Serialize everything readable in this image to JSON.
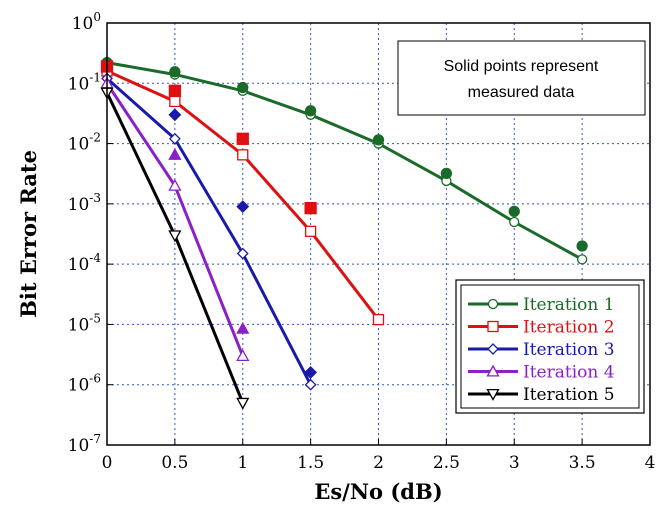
{
  "chart_data": {
    "type": "line",
    "xlabel": "Es/No (dB)",
    "ylabel": "Bit Error Rate",
    "xlim": [
      0,
      4
    ],
    "ylim": [
      1e-07,
      1
    ],
    "yscale": "log",
    "grid": true,
    "x_ticks": [
      "0",
      "0.5",
      "1",
      "1.5",
      "2",
      "2.5",
      "3",
      "3.5",
      "4"
    ],
    "y_ticks": [
      {
        "base": "10",
        "exp": "0"
      },
      {
        "base": "10",
        "exp": "-1"
      },
      {
        "base": "10",
        "exp": "-2"
      },
      {
        "base": "10",
        "exp": "-3"
      },
      {
        "base": "10",
        "exp": "-4"
      },
      {
        "base": "10",
        "exp": "-5"
      },
      {
        "base": "10",
        "exp": "-6"
      },
      {
        "base": "10",
        "exp": "-7"
      }
    ],
    "annotation": [
      "Solid points represent",
      "measured data"
    ],
    "legend_position": "lower-right",
    "series": [
      {
        "name": "Iteration 1",
        "color": "#1a6b2a",
        "marker": "circle",
        "x": [
          0,
          0.5,
          1,
          1.5,
          2,
          2.5,
          3,
          3.5
        ],
        "simulated": [
          0.22,
          0.14,
          0.075,
          0.03,
          0.01,
          0.0024,
          0.0005,
          0.00012
        ],
        "measured": [
          0.22,
          0.155,
          0.085,
          0.035,
          0.0115,
          0.0032,
          0.00075,
          0.0002
        ]
      },
      {
        "name": "Iteration 2",
        "color": "#dd1111",
        "marker": "square",
        "x": [
          0,
          0.5,
          1,
          1.5,
          2
        ],
        "simulated": [
          0.16,
          0.05,
          0.0065,
          0.00035,
          1.2e-05
        ],
        "measured": [
          0.19,
          0.075,
          0.012,
          0.00085,
          null
        ]
      },
      {
        "name": "Iteration 3",
        "color": "#1a1aaa",
        "marker": "diamond",
        "x": [
          0,
          0.5,
          1,
          1.5
        ],
        "simulated": [
          0.12,
          0.012,
          0.00015,
          1e-06
        ],
        "measured": [
          null,
          0.03,
          0.0009,
          1.6e-06
        ]
      },
      {
        "name": "Iteration 4",
        "color": "#8a20c8",
        "marker": "triangle-up",
        "x": [
          0,
          0.5,
          1
        ],
        "simulated": [
          0.1,
          0.002,
          3e-06
        ],
        "measured": [
          null,
          0.0065,
          8.5e-06
        ]
      },
      {
        "name": "Iteration 5",
        "color": "#000000",
        "marker": "triangle-down",
        "x": [
          0,
          0.5,
          1
        ],
        "simulated": [
          0.07,
          0.0003,
          5e-07
        ],
        "measured": [
          null,
          null,
          null
        ]
      }
    ]
  }
}
